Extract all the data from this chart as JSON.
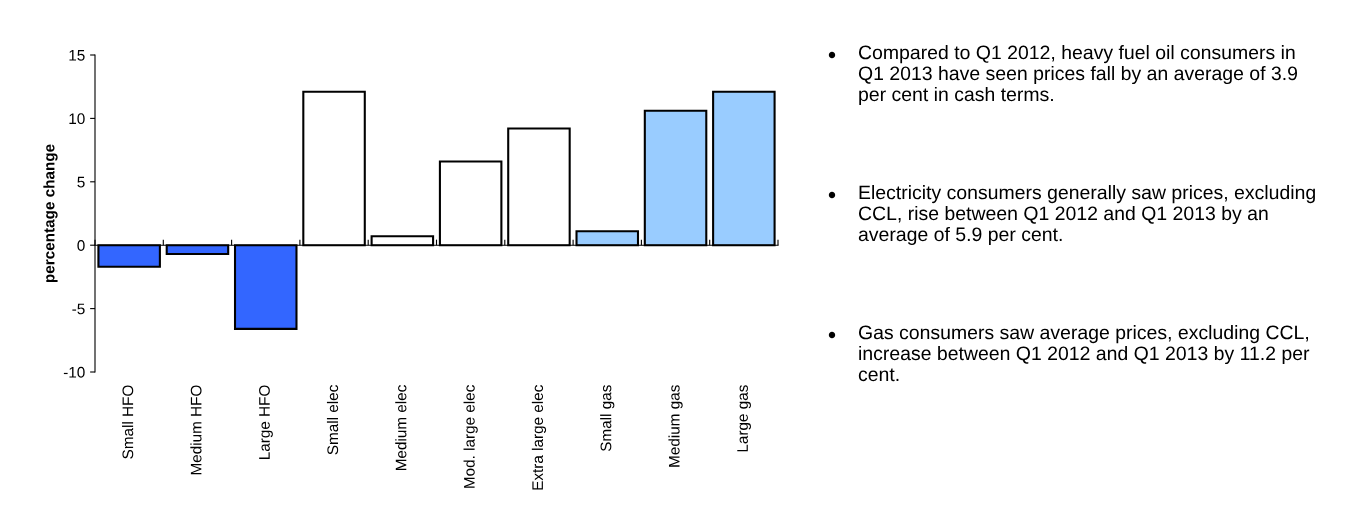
{
  "chart_data": {
    "type": "bar",
    "ylabel": "percentage change",
    "categories": [
      "Small HFO",
      "Medium HFO",
      "Large HFO",
      "Small elec",
      "Medium elec",
      "Mod. large elec",
      "Extra large elec",
      "Small gas",
      "Medium gas",
      "Large gas"
    ],
    "values": [
      -1.7,
      -0.7,
      -6.6,
      12.1,
      0.7,
      6.6,
      9.2,
      1.1,
      10.6,
      12.1
    ],
    "colors": [
      "#3366ff",
      "#3366ff",
      "#3366ff",
      "#ffffff",
      "#ffffff",
      "#ffffff",
      "#ffffff",
      "#99ccff",
      "#99ccff",
      "#99ccff"
    ],
    "ylim": [
      -10,
      15
    ],
    "yticks": [
      -10,
      -5,
      0,
      5,
      10,
      15
    ],
    "legend": false,
    "annotations": [
      "Compared to Q1 2012, heavy fuel oil consumers in Q1 2013 have seen prices fall by an average of 3.9 per cent in cash terms.",
      "Electricity consumers generally saw prices, excluding CCL, rise between Q1 2012 and Q1 2013 by an average of 5.9 per cent.",
      "Gas consumers saw average prices, excluding CCL, increase between Q1 2012 and Q1 2013 by 11.2 per cent."
    ]
  }
}
